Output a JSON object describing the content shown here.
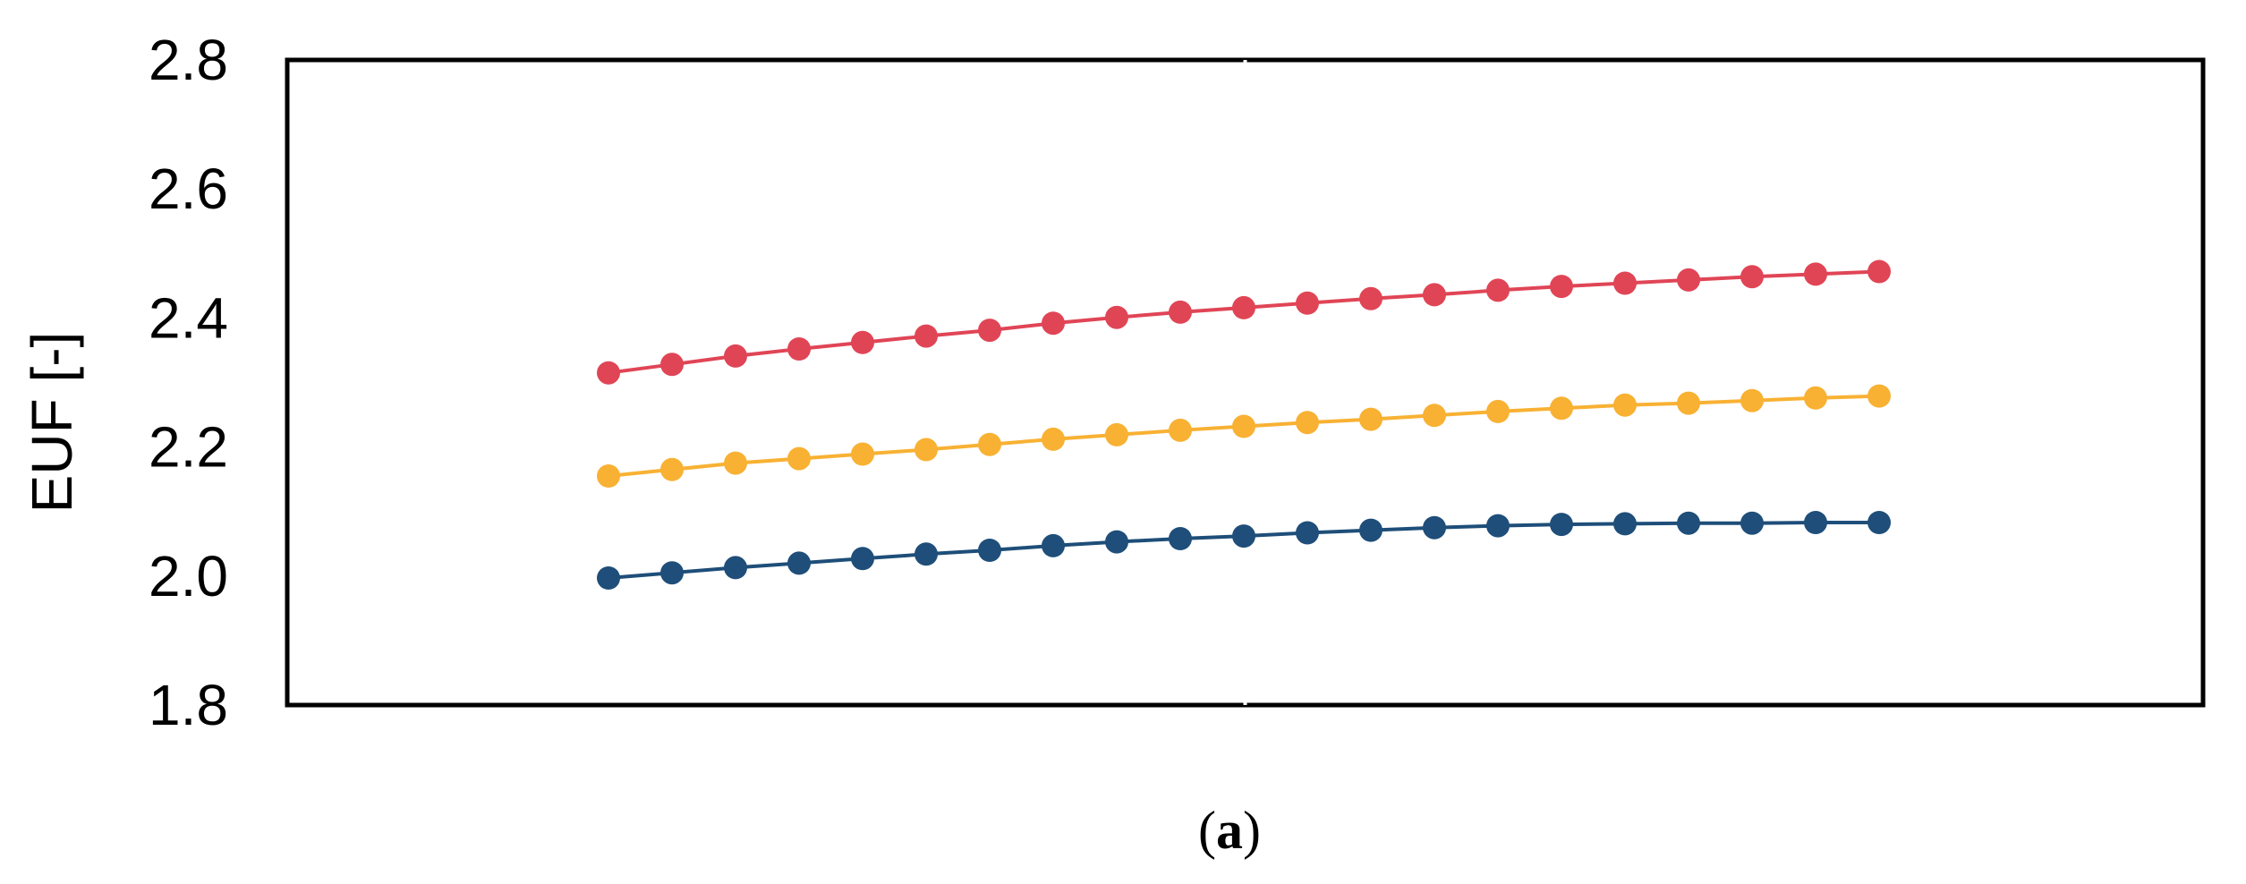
{
  "chart_data": {
    "type": "line",
    "title": "",
    "xlabel": "",
    "ylabel": "EUF [-]",
    "ylim": [
      1.8,
      2.8
    ],
    "yticks": [
      "1.8",
      "2.0",
      "2.2",
      "2.4",
      "2.6",
      "2.8"
    ],
    "grid": false,
    "legend": "none",
    "x": [
      1,
      2,
      3,
      4,
      5,
      6,
      7,
      8,
      9,
      10,
      11,
      12,
      13,
      14,
      15,
      16,
      17,
      18,
      19,
      20,
      21
    ],
    "series": [
      {
        "color": "#E04556",
        "values": [
          2.315,
          2.328,
          2.341,
          2.352,
          2.362,
          2.372,
          2.381,
          2.392,
          2.401,
          2.409,
          2.416,
          2.423,
          2.43,
          2.436,
          2.443,
          2.449,
          2.454,
          2.459,
          2.464,
          2.468,
          2.472
        ]
      },
      {
        "color": "#F8B133",
        "values": [
          2.155,
          2.165,
          2.175,
          2.182,
          2.189,
          2.196,
          2.204,
          2.212,
          2.219,
          2.226,
          2.232,
          2.238,
          2.243,
          2.249,
          2.255,
          2.26,
          2.265,
          2.268,
          2.272,
          2.276,
          2.279
        ]
      },
      {
        "color": "#1E4E79",
        "values": [
          1.997,
          2.005,
          2.013,
          2.02,
          2.027,
          2.034,
          2.04,
          2.047,
          2.053,
          2.058,
          2.062,
          2.067,
          2.071,
          2.075,
          2.078,
          2.08,
          2.081,
          2.082,
          2.082,
          2.083,
          2.083
        ]
      }
    ],
    "x_tick_marks": 3
  },
  "caption": {
    "open": "(",
    "letter": "a",
    "close": ")"
  }
}
